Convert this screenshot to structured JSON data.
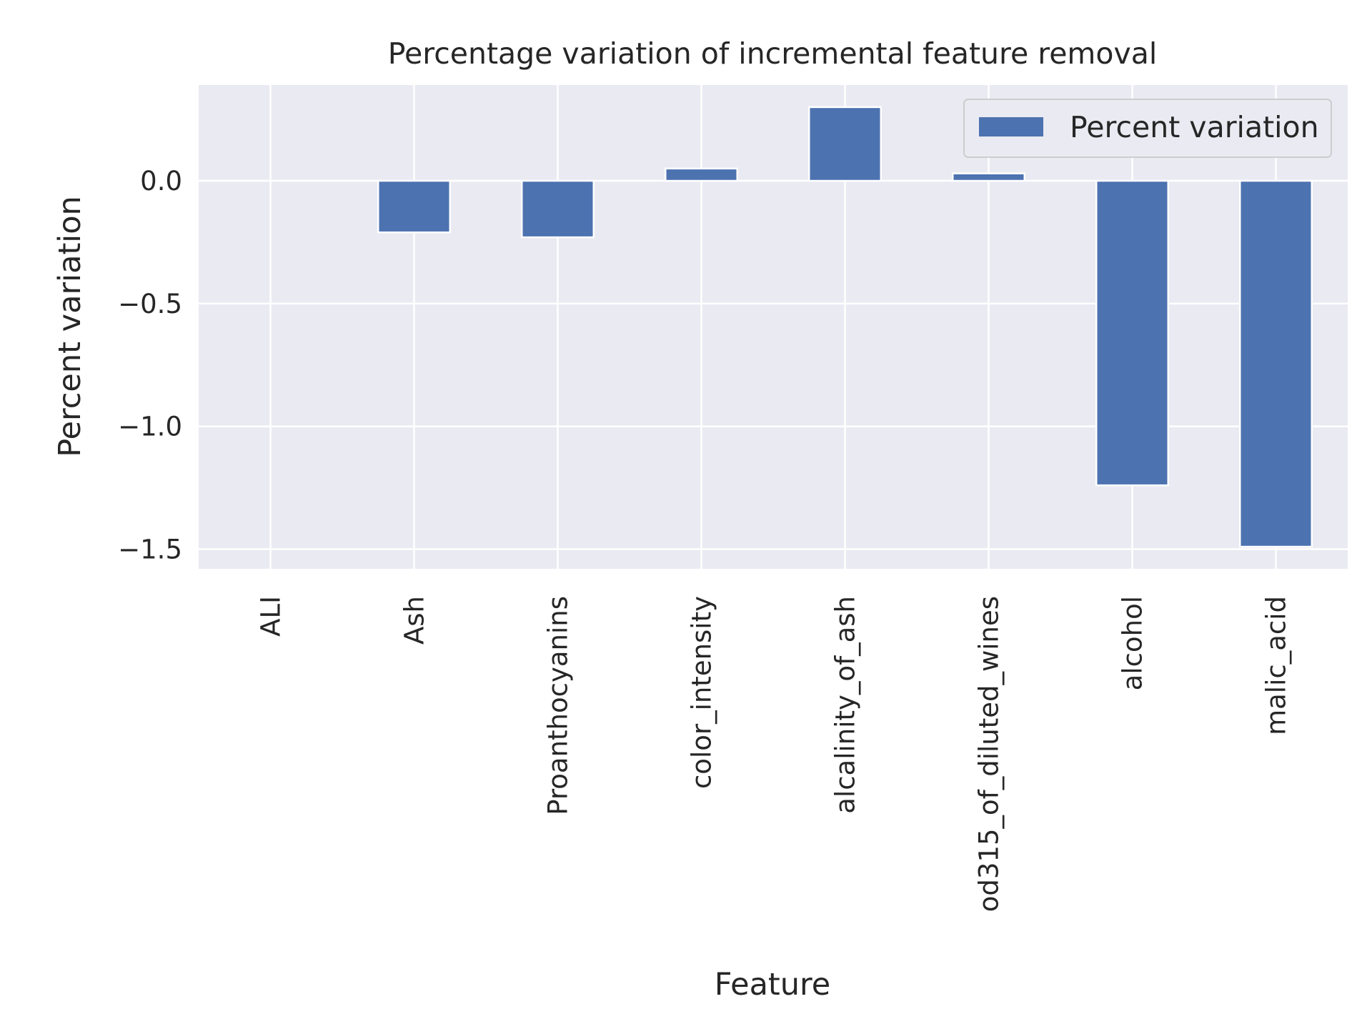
{
  "chart_data": {
    "type": "bar",
    "title": "Percentage variation of incremental feature removal",
    "xlabel": "Feature",
    "ylabel": "Percent variation",
    "categories": [
      "ALI",
      "Ash",
      "Proanthocyanins",
      "color_intensity",
      "alcalinity_of_ash",
      "od315_of_diluted_wines",
      "alcohol",
      "malic_acid"
    ],
    "series": [
      {
        "name": "Percent variation",
        "values": [
          0.0,
          -0.21,
          -0.23,
          0.05,
          0.3,
          0.03,
          -1.24,
          -1.49
        ],
        "color": "#4c72b0"
      }
    ],
    "ylim": [
      -1.58,
      0.39
    ],
    "yticks": [
      0.0,
      -0.5,
      -1.0,
      -1.5
    ],
    "ytick_labels": [
      "0.0",
      "−0.5",
      "−1.0",
      "−1.5"
    ],
    "grid": true,
    "legend": "top-right",
    "colors": {
      "background": "#eaeaf2",
      "grid": "#ffffff",
      "bar": "#4c72b0"
    }
  }
}
